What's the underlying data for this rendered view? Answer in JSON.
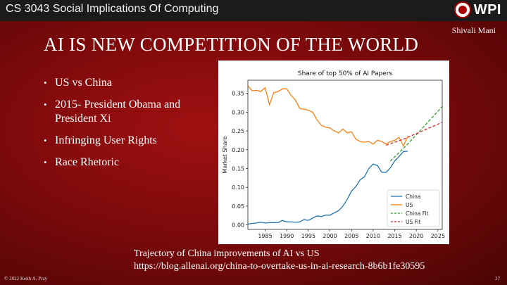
{
  "header": {
    "course": "CS 3043 Social Implications Of Computing",
    "logo_text": "WPI"
  },
  "author": "Shivali Mani",
  "slide_title": "AI IS NEW COMPETITION OF THE WORLD",
  "bullets": [
    "US vs China",
    "2015- President Obama and President Xi",
    "Infringing User Rights",
    "Race Rhetoric"
  ],
  "caption": {
    "line1": "Trajectory of China improvements of AI vs US",
    "line2": "https://blog.allenai.org/china-to-overtake-us-in-ai-research-8b6b1fe30595"
  },
  "footer": {
    "copyright": "© 2022 Keith A. Pray",
    "page_number": "27"
  },
  "colors": {
    "china": "#1f77b4",
    "us": "#ff7f0e",
    "china_fit": "#2ca02c",
    "us_fit": "#d62728"
  },
  "chart_data": {
    "type": "line",
    "title": "Share of top 50% of AI Papers",
    "xlabel": "",
    "ylabel": "Market Share",
    "xlim": [
      1981,
      2026
    ],
    "ylim": [
      -0.012,
      0.385
    ],
    "x_ticks": [
      1985,
      1990,
      1995,
      2000,
      2005,
      2010,
      2015,
      2020,
      2025
    ],
    "y_ticks": [
      0.0,
      0.05,
      0.1,
      0.15,
      0.2,
      0.25,
      0.3,
      0.35
    ],
    "y_tick_labels": [
      "0.00",
      "0.05",
      "0.10",
      "0.15",
      "0.20",
      "0.25",
      "0.30",
      "0.35"
    ],
    "legend_position": "lower-right",
    "series": [
      {
        "name": "China",
        "style": "solid",
        "color": "#1f77b4",
        "x": [
          1981,
          1982,
          1983,
          1984,
          1985,
          1986,
          1987,
          1988,
          1989,
          1990,
          1991,
          1992,
          1993,
          1994,
          1995,
          1996,
          1997,
          1998,
          1999,
          2000,
          2001,
          2002,
          2003,
          2004,
          2005,
          2006,
          2007,
          2008,
          2009,
          2010,
          2011,
          2012,
          2013,
          2014,
          2015,
          2016,
          2017,
          2018
        ],
        "values": [
          0.002,
          0.004,
          0.005,
          0.007,
          0.005,
          0.006,
          0.006,
          0.006,
          0.012,
          0.008,
          0.008,
          0.007,
          0.008,
          0.014,
          0.012,
          0.018,
          0.024,
          0.022,
          0.026,
          0.026,
          0.032,
          0.038,
          0.05,
          0.068,
          0.09,
          0.102,
          0.12,
          0.128,
          0.15,
          0.162,
          0.158,
          0.14,
          0.14,
          0.152,
          0.17,
          0.182,
          0.195,
          0.196
        ]
      },
      {
        "name": "US",
        "style": "solid",
        "color": "#ff7f0e",
        "x": [
          1981,
          1982,
          1983,
          1984,
          1985,
          1986,
          1987,
          1988,
          1989,
          1990,
          1991,
          1992,
          1993,
          1994,
          1995,
          1996,
          1997,
          1998,
          1999,
          2000,
          2001,
          2002,
          2003,
          2004,
          2005,
          2006,
          2007,
          2008,
          2009,
          2010,
          2011,
          2012,
          2013,
          2014,
          2015,
          2016,
          2017,
          2018
        ],
        "values": [
          0.37,
          0.357,
          0.358,
          0.355,
          0.365,
          0.32,
          0.352,
          0.355,
          0.362,
          0.362,
          0.345,
          0.332,
          0.31,
          0.308,
          0.305,
          0.3,
          0.28,
          0.265,
          0.26,
          0.258,
          0.25,
          0.245,
          0.255,
          0.245,
          0.248,
          0.228,
          0.222,
          0.22,
          0.222,
          0.215,
          0.225,
          0.222,
          0.215,
          0.222,
          0.225,
          0.233,
          0.21,
          0.235
        ]
      },
      {
        "name": "China Fit",
        "style": "dashed",
        "color": "#2ca02c",
        "x": [
          2014,
          2018,
          2022,
          2026
        ],
        "values": [
          0.17,
          0.215,
          0.265,
          0.315
        ]
      },
      {
        "name": "US Fit",
        "style": "dashed",
        "color": "#d62728",
        "x": [
          2013,
          2017,
          2021,
          2026
        ],
        "values": [
          0.212,
          0.228,
          0.248,
          0.273
        ]
      }
    ]
  }
}
